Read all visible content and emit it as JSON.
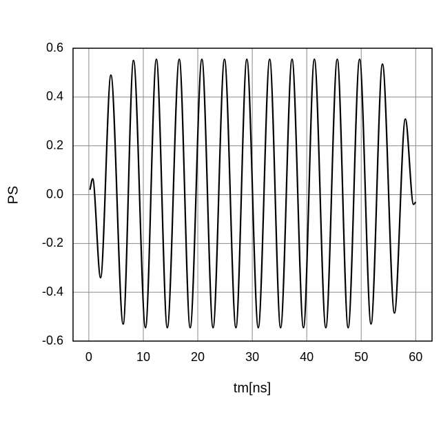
{
  "chart_data": {
    "type": "line",
    "x_label": "tm[ns]",
    "y_label": "PS",
    "x": [
      0.2,
      0.7,
      2.15,
      4.05,
      6.3,
      8.2,
      10.4,
      12.4,
      14.4,
      16.6,
      18.6,
      20.75,
      22.8,
      24.9,
      27.0,
      29.0,
      31.1,
      33.2,
      35.2,
      37.3,
      39.4,
      41.4,
      43.5,
      45.6,
      47.6,
      49.7,
      51.8,
      53.9,
      56.1,
      58.1,
      59.6,
      60.0
    ],
    "series": [
      {
        "color": "#000000",
        "values": [
          0.02,
          0.065,
          -0.34,
          0.49,
          -0.53,
          0.55,
          -0.545,
          0.555,
          -0.545,
          0.555,
          -0.545,
          0.555,
          -0.545,
          0.555,
          -0.545,
          0.555,
          -0.545,
          0.555,
          -0.545,
          0.555,
          -0.545,
          0.555,
          -0.545,
          0.555,
          -0.545,
          0.555,
          -0.53,
          0.535,
          -0.485,
          0.31,
          -0.04,
          -0.03
        ]
      }
    ],
    "xlim": [
      -2.9,
      63
    ],
    "xticks": [
      0,
      10,
      20,
      30,
      40,
      50,
      60
    ],
    "ylim": [
      -0.6,
      0.6
    ],
    "yticks": [
      -0.6,
      -0.4,
      -0.2,
      {
        "value": 0,
        "label": "0.0"
      },
      0.2,
      0.4,
      0.6
    ],
    "grid": true
  }
}
